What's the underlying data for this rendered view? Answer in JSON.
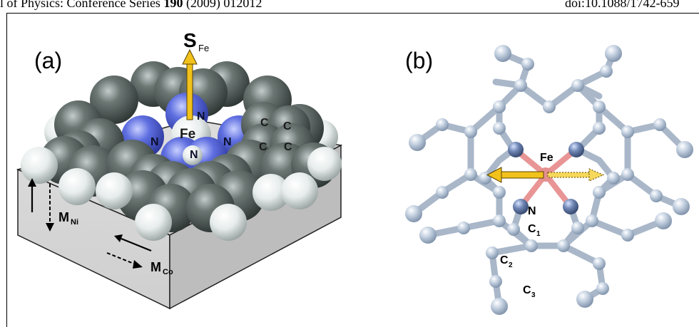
{
  "header": {
    "left_prefix": "al of Physics: Conference Series ",
    "left_volume": "190",
    "left_suffix": " (2009) 012012",
    "right": "doi:10.1088/1742-659"
  },
  "panel_a": {
    "label": "(a)",
    "spin_main": "S",
    "spin_sub": "Fe",
    "fe": "Fe",
    "n": "N",
    "c": "C",
    "m_ni_main": "M",
    "m_ni_sub": "Ni",
    "m_co_main": "M",
    "m_co_sub": "Co"
  },
  "panel_b": {
    "label": "(b)",
    "fe": "Fe",
    "n": "N",
    "c1_main": "C",
    "c1_sub": "1",
    "c2_main": "C",
    "c2_sub": "2",
    "c3_main": "C",
    "c3_sub": "3"
  },
  "colors": {
    "carbon": "#4f5956",
    "nitrogen": "#5868d8",
    "hydrogen": "#e9efee",
    "arrow": "#f2c21c",
    "ball": "#c7d3e2",
    "ball_n": "#6f86b3",
    "fe_b": "#e58f8f"
  }
}
